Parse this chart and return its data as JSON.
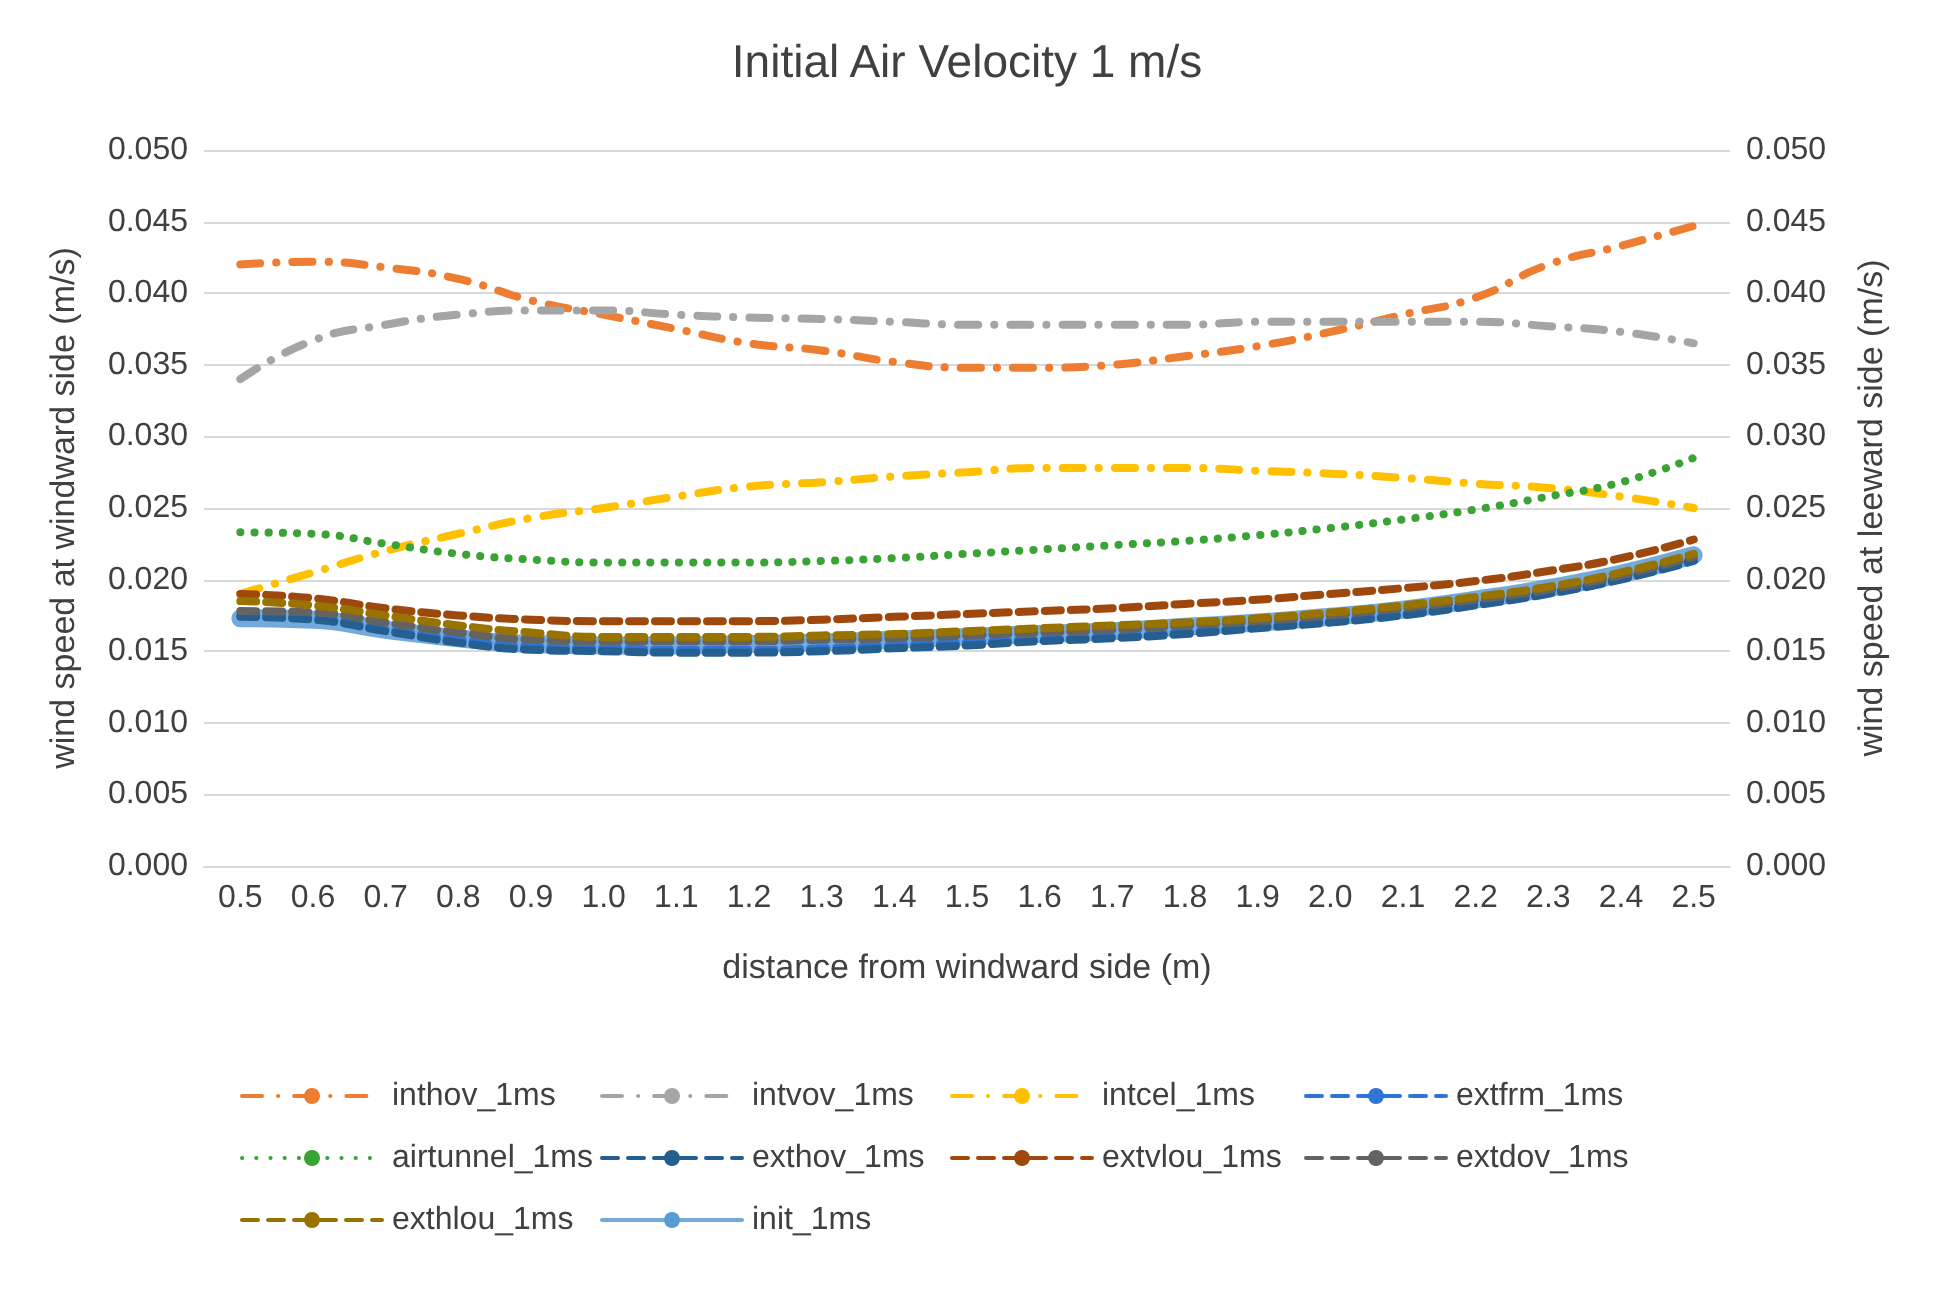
{
  "chart_data": {
    "type": "line",
    "title": "Initial Air Velocity 1 m/s",
    "xlabel": "distance from windward side (m)",
    "ylabel": "wind speed at windward side (m/s)",
    "y2label": "wind speed at leeward side (m/s)",
    "categories": [
      "0.5",
      "0.6",
      "0.7",
      "0.8",
      "0.9",
      "1.0",
      "1.1",
      "1.2",
      "1.3",
      "1.4",
      "1.5",
      "1.6",
      "1.7",
      "1.8",
      "1.9",
      "2.0",
      "2.1",
      "2.2",
      "2.3",
      "2.4",
      "2.5"
    ],
    "ylim": [
      0,
      0.05
    ],
    "yticks": [
      {
        "value": 0,
        "label": "0.000"
      },
      {
        "value": 0.005,
        "label": "0.005"
      },
      {
        "value": 0.01,
        "label": "0.010"
      },
      {
        "value": 0.015,
        "label": "0.015"
      },
      {
        "value": 0.02,
        "label": "0.020"
      },
      {
        "value": 0.025,
        "label": "0.025"
      },
      {
        "value": 0.03,
        "label": "0.030"
      },
      {
        "value": 0.035,
        "label": "0.035"
      },
      {
        "value": 0.04,
        "label": "0.040"
      },
      {
        "value": 0.045,
        "label": "0.045"
      },
      {
        "value": 0.05,
        "label": "0.050"
      }
    ],
    "y2lim": [
      0,
      0.05
    ],
    "y2ticks": [
      {
        "value": 0,
        "label": "0.000"
      },
      {
        "value": 0.005,
        "label": "0.005"
      },
      {
        "value": 0.01,
        "label": "0.010"
      },
      {
        "value": 0.015,
        "label": "0.015"
      },
      {
        "value": 0.02,
        "label": "0.020"
      },
      {
        "value": 0.025,
        "label": "0.025"
      },
      {
        "value": 0.03,
        "label": "0.030"
      },
      {
        "value": 0.035,
        "label": "0.035"
      },
      {
        "value": 0.04,
        "label": "0.040"
      },
      {
        "value": 0.045,
        "label": "0.045"
      },
      {
        "value": 0.05,
        "label": "0.050"
      }
    ],
    "grid": "y",
    "legend": "bottom",
    "marker": "none",
    "series": [
      {
        "name": "inthov_1ms",
        "color": "#ed7d31",
        "line_style": "dashdot",
        "values": [
          0.042,
          0.0422,
          0.0418,
          0.041,
          0.0395,
          0.0385,
          0.0375,
          0.0365,
          0.036,
          0.0352,
          0.0348,
          0.0348,
          0.035,
          0.0356,
          0.0363,
          0.0373,
          0.0385,
          0.0397,
          0.042,
          0.0433,
          0.0447
        ]
      },
      {
        "name": "intvov_1ms",
        "color": "#a5a5a5",
        "line_style": "dashdot",
        "values": [
          0.034,
          0.0367,
          0.0378,
          0.0385,
          0.0388,
          0.0388,
          0.0385,
          0.0383,
          0.0382,
          0.038,
          0.0378,
          0.0378,
          0.0378,
          0.0378,
          0.038,
          0.038,
          0.038,
          0.038,
          0.0377,
          0.0373,
          0.0365
        ]
      },
      {
        "name": "intcel_1ms",
        "color": "#ffc000",
        "line_style": "dashdot",
        "values": [
          0.019,
          0.0205,
          0.022,
          0.0232,
          0.0243,
          0.025,
          0.0258,
          0.0265,
          0.0268,
          0.0272,
          0.0275,
          0.0278,
          0.0278,
          0.0278,
          0.0276,
          0.0274,
          0.0271,
          0.0267,
          0.0264,
          0.0258,
          0.025
        ]
      },
      {
        "name": "extfrm_1ms",
        "color": "#2f75d6",
        "line_style": "dashed",
        "values": [
          0.0175,
          0.0173,
          0.0165,
          0.0158,
          0.0153,
          0.0152,
          0.0151,
          0.0151,
          0.0152,
          0.0154,
          0.0156,
          0.0158,
          0.016,
          0.0163,
          0.0167,
          0.0171,
          0.0176,
          0.0183,
          0.0191,
          0.0201,
          0.0214
        ]
      },
      {
        "name": "airtunnel_1ms",
        "color": "#3aa335",
        "line_style": "dotted",
        "values": [
          0.0233,
          0.0232,
          0.0225,
          0.0218,
          0.0214,
          0.0212,
          0.0212,
          0.0212,
          0.0213,
          0.0215,
          0.0218,
          0.0221,
          0.0224,
          0.0227,
          0.0231,
          0.0236,
          0.0242,
          0.0249,
          0.0258,
          0.0268,
          0.0285
        ]
      },
      {
        "name": "exthov_1ms",
        "color": "#255e91",
        "line_style": "dashed",
        "values": [
          0.0174,
          0.0172,
          0.0164,
          0.0156,
          0.0151,
          0.015,
          0.0149,
          0.0149,
          0.015,
          0.0152,
          0.0154,
          0.0157,
          0.0159,
          0.0162,
          0.0166,
          0.017,
          0.0175,
          0.0182,
          0.019,
          0.02,
          0.0213
        ]
      },
      {
        "name": "extvlou_1ms",
        "color": "#9e480e",
        "line_style": "dashed",
        "values": [
          0.019,
          0.0187,
          0.018,
          0.0175,
          0.0172,
          0.0171,
          0.0171,
          0.0171,
          0.0172,
          0.0174,
          0.0176,
          0.0178,
          0.018,
          0.0183,
          0.0186,
          0.019,
          0.0194,
          0.0199,
          0.0206,
          0.0215,
          0.0228
        ]
      },
      {
        "name": "extdov_1ms",
        "color": "#636363",
        "line_style": "dashed",
        "values": [
          0.0178,
          0.0177,
          0.017,
          0.0163,
          0.0158,
          0.0157,
          0.0157,
          0.0157,
          0.0158,
          0.0159,
          0.0161,
          0.0163,
          0.0165,
          0.0168,
          0.0171,
          0.0175,
          0.018,
          0.0186,
          0.0193,
          0.0203,
          0.0216
        ]
      },
      {
        "name": "exthlou_1ms",
        "color": "#997300",
        "line_style": "dashed",
        "values": [
          0.0185,
          0.0182,
          0.0175,
          0.0168,
          0.0163,
          0.016,
          0.016,
          0.016,
          0.0161,
          0.0162,
          0.0164,
          0.0166,
          0.0168,
          0.017,
          0.0173,
          0.0177,
          0.0182,
          0.0188,
          0.0195,
          0.0205,
          0.0218
        ]
      },
      {
        "name": "init_1ms",
        "color": "#5b9bd5",
        "line_style": "solid",
        "values": [
          0.0173,
          0.0172,
          0.0165,
          0.0159,
          0.0155,
          0.0154,
          0.0154,
          0.0155,
          0.0156,
          0.0158,
          0.016,
          0.0162,
          0.0164,
          0.0167,
          0.017,
          0.0174,
          0.0179,
          0.0186,
          0.0194,
          0.0204,
          0.0217
        ]
      }
    ]
  }
}
